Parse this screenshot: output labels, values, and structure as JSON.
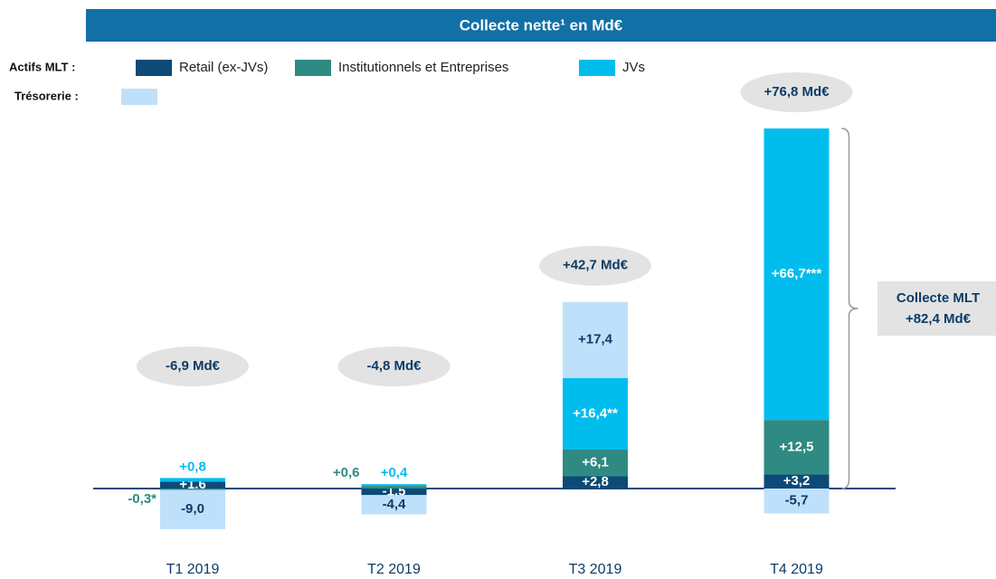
{
  "chart_data": {
    "type": "stacked-bar",
    "title": "Collecte nette¹ en Md€",
    "legend_labels": [
      "Actifs MLT :",
      "Trésorerie :"
    ],
    "categories": [
      "T1 2019",
      "T2 2019",
      "T3 2019",
      "T4 2019"
    ],
    "series": [
      {
        "name": "Retail (ex-JVs)",
        "color": "#0d4a78",
        "values": [
          1.6,
          -1.5,
          2.8,
          3.2
        ],
        "value_labels": [
          "+1,6",
          "-1,5",
          "+2,8",
          "+3,2"
        ]
      },
      {
        "name": "Institutionnels et Entreprises",
        "color": "#2e8a83",
        "values": [
          -0.3,
          0.6,
          6.1,
          12.5
        ],
        "value_labels": [
          "-0,3*",
          "+0,6",
          "+6,1",
          "+12,5"
        ]
      },
      {
        "name": "JVs",
        "color": "#00bdee",
        "values": [
          0.8,
          0.4,
          16.4,
          66.7
        ],
        "value_labels": [
          "+0,8",
          "+0,4",
          "+16,4**",
          "+66,7***"
        ]
      },
      {
        "name": "",
        "color": "#bfe0fb",
        "values": [
          -9.0,
          -4.4,
          17.4,
          -5.7
        ],
        "value_labels": [
          "-9,0",
          "-4,4",
          "+17,4",
          "-5,7"
        ]
      }
    ],
    "totals": {
      "values": [
        -6.9,
        -4.8,
        42.7,
        76.8
      ],
      "value_labels": [
        "-6,9 Md€",
        "-4,8 Md€",
        "+42,7 Md€",
        "+76,8 Md€"
      ]
    },
    "annotation": {
      "text": "Collecte MLT",
      "value": 82.4,
      "value_label": "+82,4 Md€"
    }
  }
}
